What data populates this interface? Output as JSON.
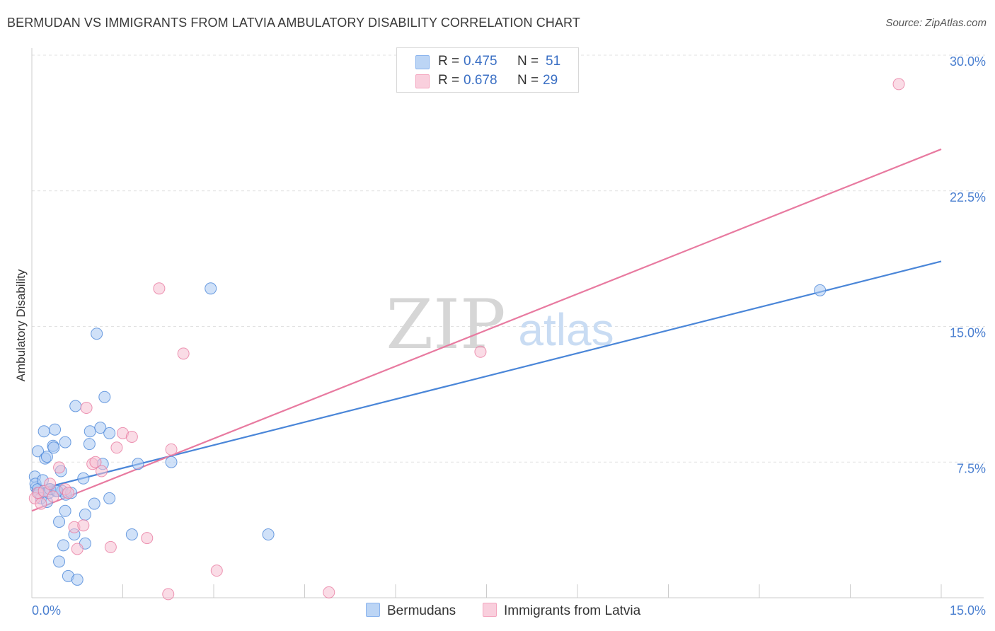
{
  "title": "BERMUDAN VS IMMIGRANTS FROM LATVIA AMBULATORY DISABILITY CORRELATION CHART",
  "source": "Source: ZipAtlas.com",
  "watermark": {
    "zip": "ZIP",
    "atlas": "atlas"
  },
  "legend": {
    "rows": [
      {
        "r_label": "R =",
        "r_value": "0.475",
        "n_label": "N =",
        "n_value": "51",
        "color": "#8ab4ee"
      },
      {
        "r_label": "R =",
        "r_value": "0.678",
        "n_label": "N =",
        "n_value": "29",
        "color": "#f4a6bf"
      }
    ]
  },
  "bottom_legend": {
    "series1": "Bermudans",
    "series2": "Immigrants from Latvia"
  },
  "chart_data": {
    "type": "scatter",
    "xlabel": "",
    "ylabel": "Ambulatory Disability",
    "xlim": [
      0,
      15
    ],
    "ylim": [
      0,
      30
    ],
    "x_tick_labels": [
      "0.0%",
      "15.0%"
    ],
    "y_tick_values": [
      7.5,
      15.0,
      22.5,
      30.0
    ],
    "y_tick_labels": [
      "7.5%",
      "15.0%",
      "22.5%",
      "30.0%"
    ],
    "grid": true,
    "legend_position": "top-center",
    "series": [
      {
        "name": "Bermudans",
        "color": "#4a86d8",
        "fill": "#aac8f2",
        "trendline": {
          "x0": 0,
          "y0": 5.9,
          "x1": 15,
          "y1": 18.6
        },
        "points": [
          [
            0.05,
            6.7
          ],
          [
            0.07,
            6.1
          ],
          [
            0.06,
            6.3
          ],
          [
            0.1,
            6.0
          ],
          [
            0.12,
            5.8
          ],
          [
            0.15,
            5.5
          ],
          [
            0.18,
            6.5
          ],
          [
            0.1,
            8.1
          ],
          [
            0.2,
            9.2
          ],
          [
            0.22,
            7.7
          ],
          [
            0.25,
            7.8
          ],
          [
            0.25,
            5.3
          ],
          [
            0.28,
            5.8
          ],
          [
            0.3,
            6.0
          ],
          [
            0.35,
            8.4
          ],
          [
            0.36,
            8.3
          ],
          [
            0.38,
            9.3
          ],
          [
            0.4,
            5.9
          ],
          [
            0.45,
            4.2
          ],
          [
            0.45,
            2.0
          ],
          [
            0.48,
            7.0
          ],
          [
            0.5,
            5.9
          ],
          [
            0.52,
            2.9
          ],
          [
            0.55,
            8.6
          ],
          [
            0.55,
            4.8
          ],
          [
            0.56,
            5.7
          ],
          [
            0.6,
            1.2
          ],
          [
            0.65,
            5.8
          ],
          [
            0.7,
            3.5
          ],
          [
            0.72,
            10.6
          ],
          [
            0.75,
            1.0
          ],
          [
            0.85,
            6.6
          ],
          [
            0.88,
            3.0
          ],
          [
            0.88,
            4.6
          ],
          [
            0.95,
            8.5
          ],
          [
            0.96,
            9.2
          ],
          [
            1.03,
            5.2
          ],
          [
            1.07,
            14.6
          ],
          [
            1.13,
            9.4
          ],
          [
            1.17,
            7.4
          ],
          [
            1.2,
            11.1
          ],
          [
            1.28,
            5.5
          ],
          [
            1.28,
            9.1
          ],
          [
            1.65,
            3.5
          ],
          [
            1.75,
            7.4
          ],
          [
            2.3,
            7.5
          ],
          [
            2.95,
            17.1
          ],
          [
            3.9,
            3.5
          ],
          [
            13.0,
            17.0
          ],
          [
            0.3,
            6.0
          ],
          [
            0.42,
            5.9
          ]
        ]
      },
      {
        "name": "Immigrants from Latvia",
        "color": "#e87aa0",
        "fill": "#f6bfd2",
        "trendline": {
          "x0": 0,
          "y0": 4.8,
          "x1": 15,
          "y1": 24.8
        },
        "points": [
          [
            0.05,
            5.5
          ],
          [
            0.1,
            5.8
          ],
          [
            0.15,
            5.2
          ],
          [
            0.2,
            5.9
          ],
          [
            0.3,
            6.3
          ],
          [
            0.35,
            5.6
          ],
          [
            0.45,
            7.2
          ],
          [
            0.55,
            6.0
          ],
          [
            0.6,
            5.8
          ],
          [
            0.7,
            3.9
          ],
          [
            0.75,
            2.7
          ],
          [
            0.85,
            4.0
          ],
          [
            0.9,
            10.5
          ],
          [
            1.0,
            7.4
          ],
          [
            1.05,
            7.5
          ],
          [
            1.15,
            7.0
          ],
          [
            1.3,
            2.8
          ],
          [
            1.4,
            8.3
          ],
          [
            1.5,
            9.1
          ],
          [
            1.65,
            8.9
          ],
          [
            1.9,
            3.3
          ],
          [
            2.1,
            17.1
          ],
          [
            2.25,
            0.2
          ],
          [
            2.3,
            8.2
          ],
          [
            2.5,
            13.5
          ],
          [
            3.05,
            1.5
          ],
          [
            4.9,
            0.3
          ],
          [
            7.4,
            13.6
          ],
          [
            14.3,
            28.4
          ]
        ]
      }
    ]
  }
}
